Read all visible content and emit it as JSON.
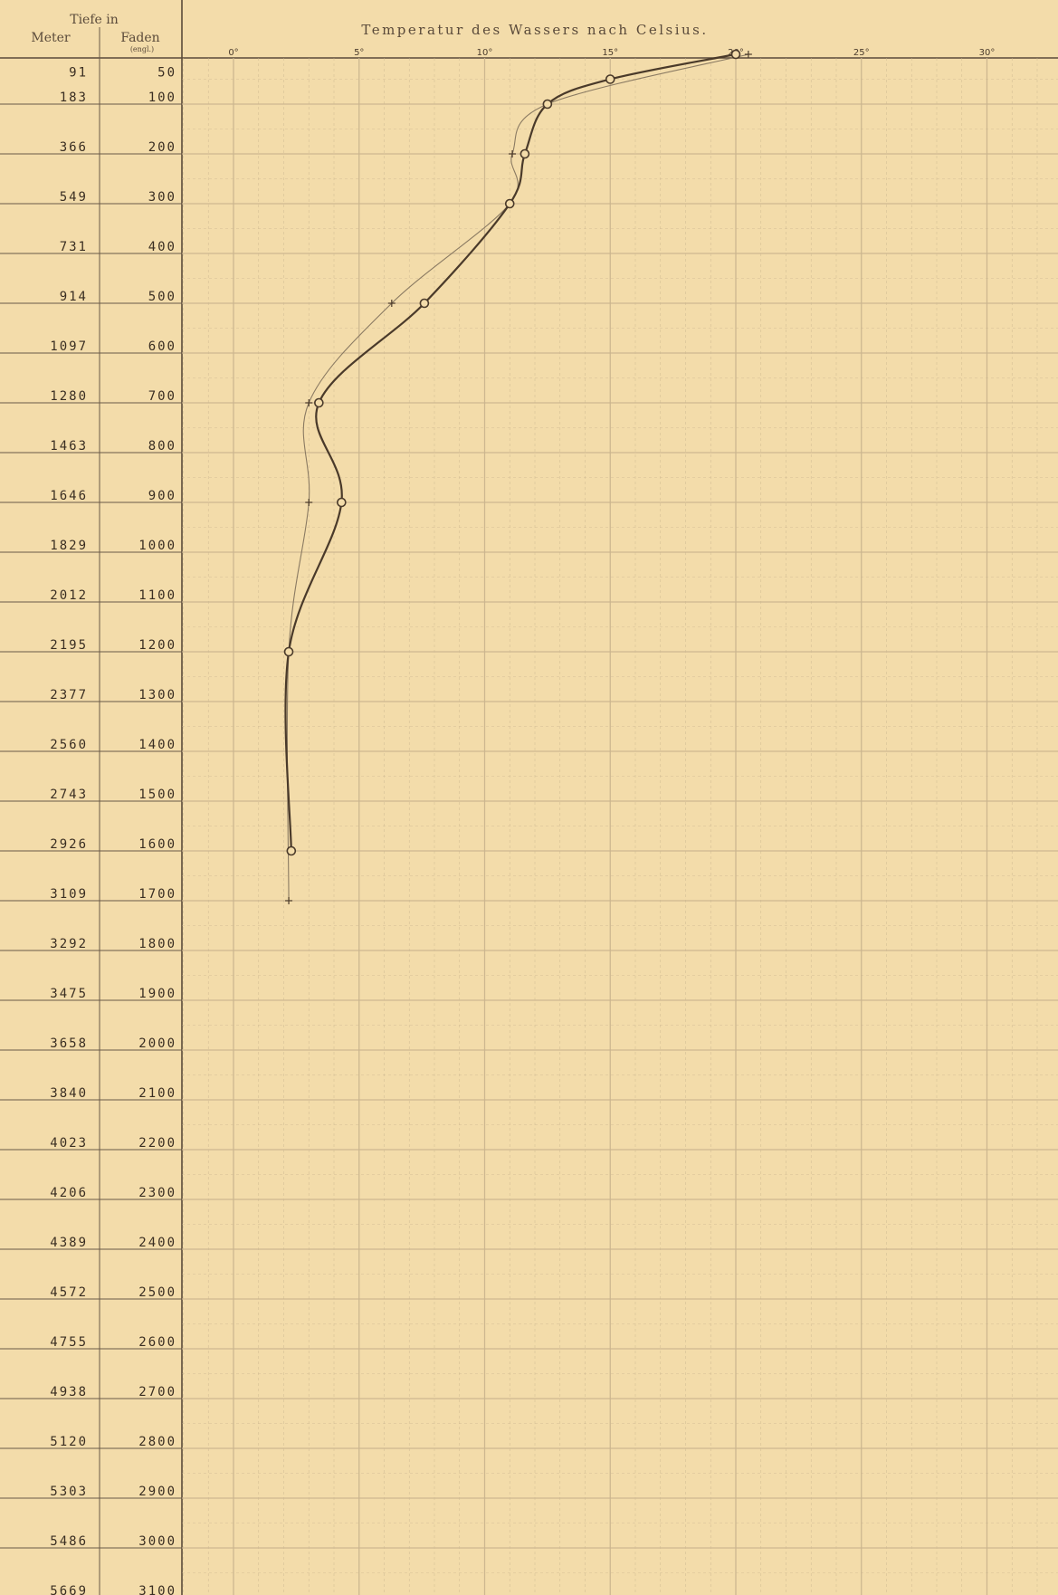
{
  "colors": {
    "paper": "#f3dcaa",
    "grid": "#c9b48e",
    "ink": "#3a2e22",
    "curve": "#4a3a2a",
    "curve_secondary": "#8a7a62"
  },
  "header": {
    "depth_title": "Tiefe in",
    "meter_label": "Meter",
    "faden_label": "Faden",
    "faden_sublabel": "(engl.)"
  },
  "chart_data": {
    "type": "line",
    "title": "Temperatur des Wassers nach Celsius.",
    "x_axis": {
      "label": "Temperatur des Wassers nach Celsius.",
      "range": [
        -1,
        33
      ],
      "ticks": [
        0,
        5,
        10,
        15,
        20,
        25,
        30
      ],
      "tick_labels": [
        "0°",
        "5°",
        "10°",
        "15°",
        "20°",
        "25°",
        "30°"
      ]
    },
    "y_axis": {
      "label": "Tiefe in Meter / Faden (engl.)",
      "unit": "Faden",
      "inverted": true,
      "range": [
        0,
        3150
      ],
      "faden_ticks": [
        50,
        100,
        200,
        300,
        400,
        500,
        600,
        700,
        800,
        900,
        1000,
        1100,
        1200,
        1300,
        1400,
        1500,
        1600,
        1700,
        1800,
        1900,
        2000,
        2100,
        2200,
        2300,
        2400,
        2500,
        2600,
        2700,
        2800,
        2900,
        3000,
        3100
      ],
      "meter_ticks": [
        91,
        183,
        366,
        549,
        731,
        914,
        1097,
        1280,
        1463,
        1646,
        1829,
        2012,
        2195,
        2377,
        2560,
        2743,
        2926,
        3109,
        3292,
        3475,
        3658,
        3840,
        4023,
        4206,
        4389,
        4572,
        4755,
        4938,
        5120,
        5303,
        5486,
        5669
      ]
    },
    "grid": true,
    "series": [
      {
        "style": "thick",
        "points": [
          {
            "x": 20.0,
            "y": 0
          },
          {
            "x": 15.0,
            "y": 50
          },
          {
            "x": 12.5,
            "y": 100
          },
          {
            "x": 11.6,
            "y": 200
          },
          {
            "x": 11.0,
            "y": 300
          },
          {
            "x": 7.6,
            "y": 500
          },
          {
            "x": 3.4,
            "y": 700
          },
          {
            "x": 4.3,
            "y": 900
          },
          {
            "x": 2.2,
            "y": 1200
          },
          {
            "x": 2.3,
            "y": 1600
          }
        ]
      },
      {
        "style": "thin",
        "points": [
          {
            "x": 20.5,
            "y": 0
          },
          {
            "x": 12.5,
            "y": 100
          },
          {
            "x": 11.1,
            "y": 200
          },
          {
            "x": 11.0,
            "y": 300
          },
          {
            "x": 6.3,
            "y": 500
          },
          {
            "x": 3.0,
            "y": 700
          },
          {
            "x": 3.0,
            "y": 900
          },
          {
            "x": 2.2,
            "y": 1200
          },
          {
            "x": 2.2,
            "y": 1700
          }
        ]
      }
    ]
  }
}
